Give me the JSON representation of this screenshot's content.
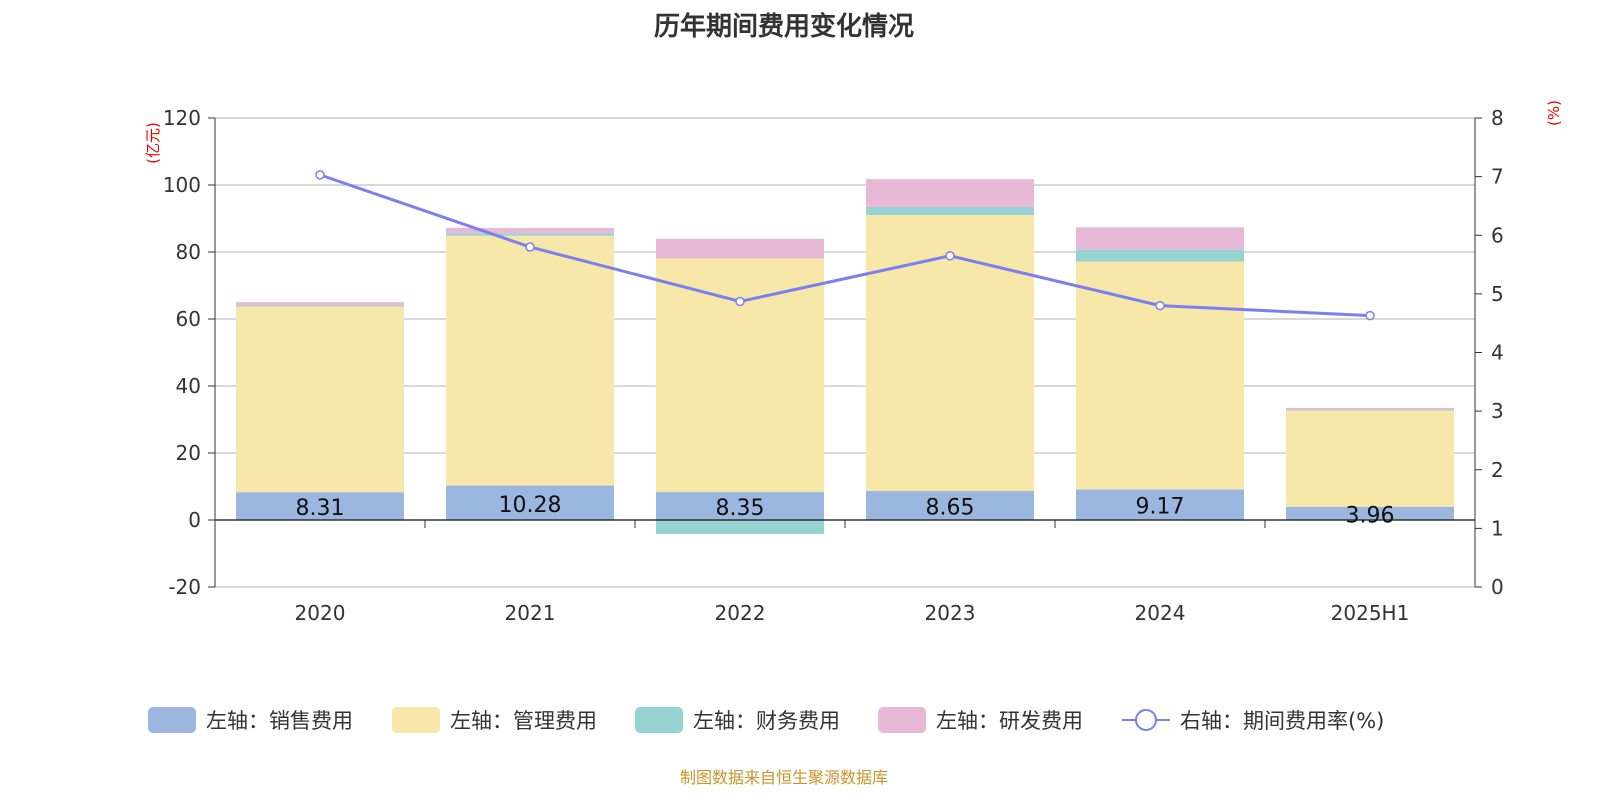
{
  "chart_data": {
    "type": "bar",
    "stacked": true,
    "title": "历年期间费用变化情况",
    "categories": [
      "2020",
      "2021",
      "2022",
      "2023",
      "2024",
      "2025H1"
    ],
    "left_axis": {
      "label": "(亿元)",
      "ylim": [
        -20,
        120
      ],
      "ticks": [
        -20,
        0,
        20,
        40,
        60,
        80,
        100,
        120
      ]
    },
    "right_axis": {
      "label": "(%)",
      "ylim": [
        0,
        8
      ],
      "ticks": [
        0,
        1,
        2,
        3,
        4,
        5,
        6,
        7,
        8
      ]
    },
    "grid": true,
    "legend_position": "bottom",
    "series": [
      {
        "name": "左轴：销售费用",
        "axis": "left",
        "type": "bar",
        "color": "#9bb7e0",
        "values": [
          8.31,
          10.28,
          8.35,
          8.65,
          9.17,
          3.96
        ],
        "show_labels": true
      },
      {
        "name": "左轴：管理费用",
        "axis": "left",
        "type": "bar",
        "color": "#f7e7a8",
        "values": [
          55.4,
          74.6,
          69.7,
          82.4,
          68.0,
          28.7
        ]
      },
      {
        "name": "左轴：财务费用",
        "axis": "left",
        "type": "bar",
        "color": "#96d3d3",
        "values": [
          0.3,
          0.7,
          -4.2,
          2.4,
          3.5,
          0.3
        ]
      },
      {
        "name": "左轴：研发费用",
        "axis": "left",
        "type": "bar",
        "color": "#e7b9d7",
        "values": [
          1.0,
          1.6,
          5.9,
          8.3,
          6.7,
          0.5
        ]
      },
      {
        "name": "右轴：期间费用率(%)",
        "axis": "right",
        "type": "line",
        "color": "#7b7ff0",
        "values": [
          7.03,
          5.8,
          4.87,
          5.65,
          4.8,
          4.63
        ]
      }
    ]
  },
  "source": "制图数据来自恒生聚源数据库"
}
